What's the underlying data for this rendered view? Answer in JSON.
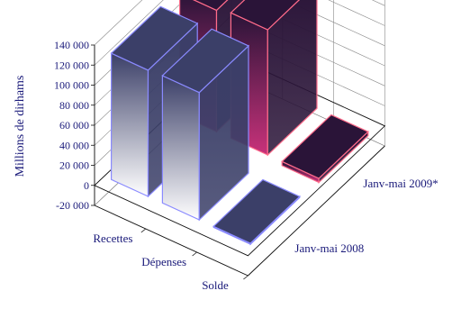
{
  "chart_data": {
    "type": "bar",
    "title": "",
    "ylabel": "Millions de dirhams",
    "xlabel": "",
    "categories": [
      "Recettes",
      "Dépenses",
      "Solde"
    ],
    "series": [
      {
        "name": "Janv-mai 2008",
        "values": [
          126000,
          127000,
          -1000
        ],
        "fill_dark": "#3b3f68",
        "fill_light": "#ffffff",
        "edge": "#8a8aff"
      },
      {
        "name": "Janv-mai 2009*",
        "values": [
          121000,
          125000,
          -4000
        ],
        "fill_dark": "#2a1438",
        "fill_light": "#c8327a",
        "edge": "#ff6b8a"
      }
    ],
    "yticks": [
      "140 000",
      "120 000",
      "100 000",
      "80 000",
      "60 000",
      "40 000",
      "20 000",
      "0",
      "-20 000"
    ],
    "tick_values": [
      140000,
      120000,
      100000,
      80000,
      60000,
      40000,
      20000,
      0,
      -20000
    ],
    "ylim": [
      -20000,
      140000
    ],
    "grid": true,
    "legend": "depth-axis labels on the right"
  }
}
